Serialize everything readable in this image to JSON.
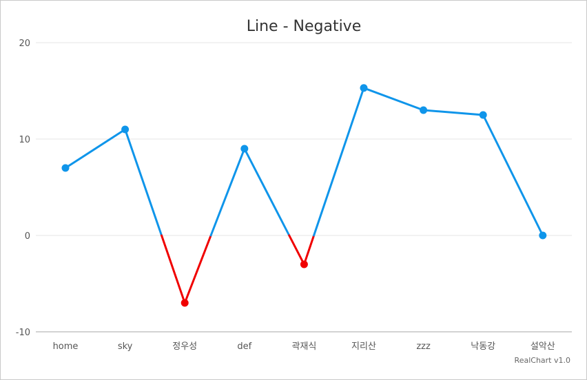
{
  "chart_data": {
    "type": "line",
    "title": "Line - Negative",
    "categories": [
      "home",
      "sky",
      "정우성",
      "def",
      "곽재식",
      "지리산",
      "zzz",
      "낙동강",
      "설악산"
    ],
    "series": [
      {
        "values": [
          7,
          11,
          -7,
          9,
          -3,
          15.3,
          13,
          12.5,
          0
        ]
      }
    ],
    "ylim": [
      -10,
      20
    ],
    "yticks": [
      -10,
      0,
      10,
      20
    ],
    "grid": true,
    "colors": {
      "positive": "#0f95ea",
      "negative": "#f00000",
      "grid": "#e6e6e6",
      "axis": "#c4c4c4"
    }
  },
  "credit": "RealChart v1.0"
}
